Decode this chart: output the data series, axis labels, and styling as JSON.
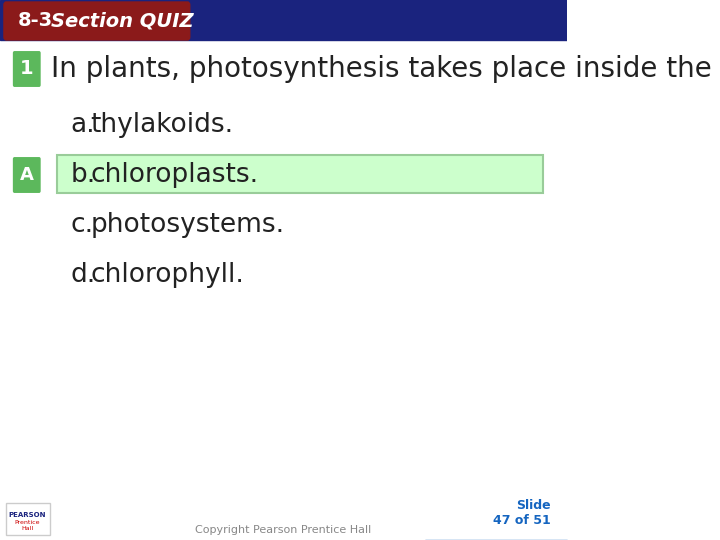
{
  "title_section": "8-3",
  "title_quiz": "Section QUIZ",
  "header_bg_color": "#1a237e",
  "header_red_bg": "#8b1a1a",
  "question_number": "1",
  "question_number_bg": "#5cb85c",
  "question_text": "In plants, photosynthesis takes place inside the",
  "answer_label": "A",
  "answer_label_bg": "#5cb85c",
  "choices": [
    {
      "letter": "a.",
      "text": "thylakoids."
    },
    {
      "letter": "b.",
      "text": "chloroplasts."
    },
    {
      "letter": "c.",
      "text": "photosystems."
    },
    {
      "letter": "d.",
      "text": "chlorophyll."
    }
  ],
  "correct_index": 1,
  "correct_highlight_bg": "#ccffcc",
  "correct_highlight_border": "#99cc99",
  "slide_text": "Slide\n47 of 51",
  "copyright_text": "Copyright Pearson Prentice Hall",
  "footer_bg_color": "#1565c0",
  "bg_color": "#ffffff",
  "text_color": "#222222",
  "font_size_question": 20,
  "font_size_choices": 19,
  "font_size_header": 16
}
